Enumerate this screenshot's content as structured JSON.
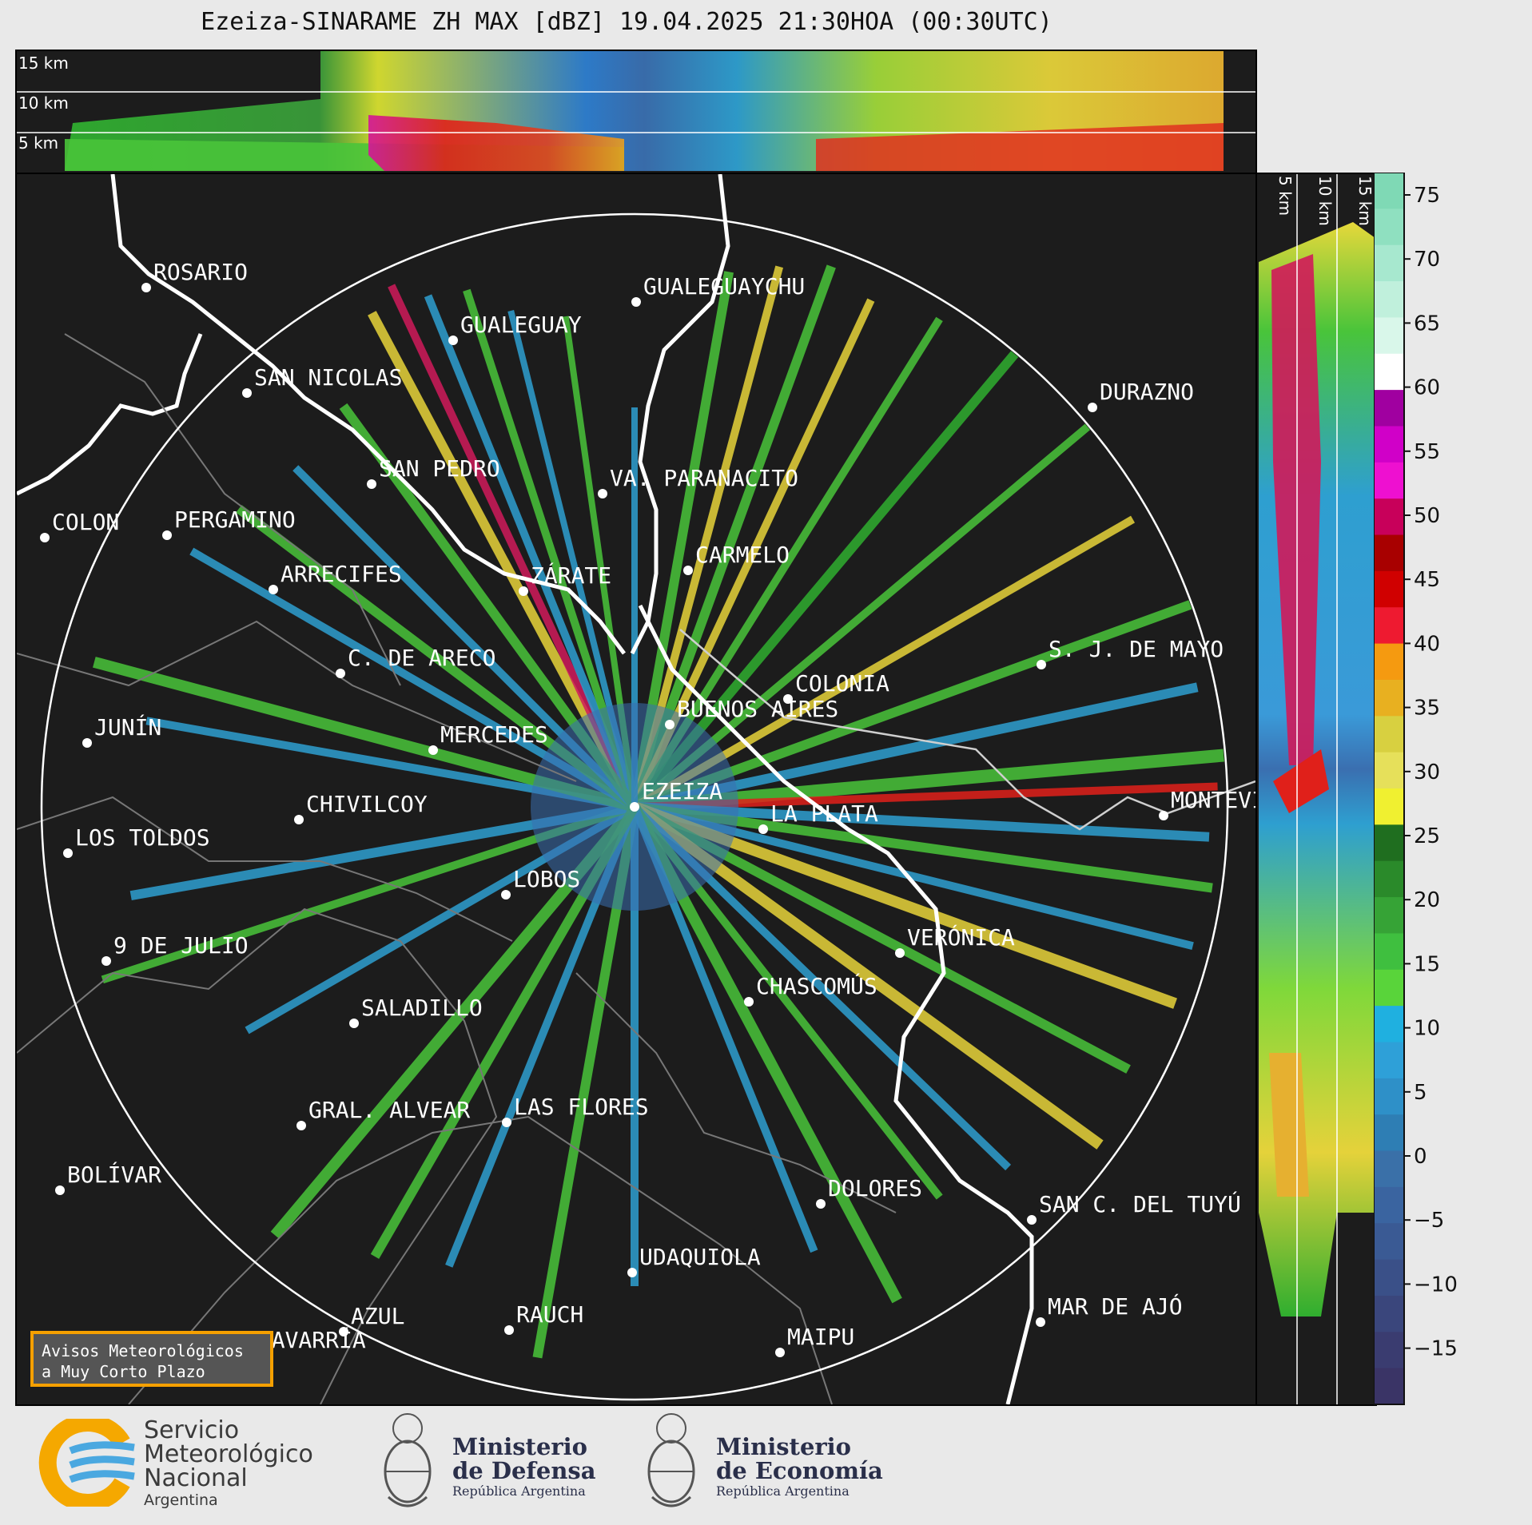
{
  "title": "Ezeiza-SINARAME ZH MAX [dBZ] 19.04.2025 21:30HOA (00:30UTC)",
  "top_panel": {
    "altitude_labels": [
      "15 km",
      "10 km",
      "5 km"
    ]
  },
  "side_panel": {
    "altitude_labels": [
      "5 km",
      "10 km",
      "15 km"
    ]
  },
  "colorbar": {
    "unit": "dBZ",
    "ticks": [
      "75",
      "70",
      "65",
      "60",
      "55",
      "50",
      "45",
      "40",
      "35",
      "30",
      "25",
      "20",
      "15",
      "10",
      "5",
      "0",
      "−5",
      "−10",
      "−15"
    ]
  },
  "cities": [
    {
      "name": "ROSARIO"
    },
    {
      "name": "GUALEGUAYCHU"
    },
    {
      "name": "GUALEGUAY"
    },
    {
      "name": "SAN NICOLAS"
    },
    {
      "name": "DURAZNO"
    },
    {
      "name": "SAN PEDRO"
    },
    {
      "name": "VA. PARANACITO"
    },
    {
      "name": "COLON"
    },
    {
      "name": "PERGAMINO"
    },
    {
      "name": "CARMELO"
    },
    {
      "name": "ARRECIFES"
    },
    {
      "name": "ZÁRATE"
    },
    {
      "name": "S. J. DE MAYO"
    },
    {
      "name": "C. DE ARECO"
    },
    {
      "name": "COLONIA"
    },
    {
      "name": "JUNÍN"
    },
    {
      "name": "BUENOS AIRES"
    },
    {
      "name": "MERCEDES"
    },
    {
      "name": "EZEIZA"
    },
    {
      "name": "MONTEVIDEO"
    },
    {
      "name": "CHIVILCOY"
    },
    {
      "name": "LA PLATA"
    },
    {
      "name": "LOS TOLDOS"
    },
    {
      "name": "LOBOS"
    },
    {
      "name": "VERÓNICA"
    },
    {
      "name": "9 DE JULIO"
    },
    {
      "name": "CHASCOMÚS"
    },
    {
      "name": "SALADILLO"
    },
    {
      "name": "GRAL. ALVEAR"
    },
    {
      "name": "LAS FLORES"
    },
    {
      "name": "BOLÍVAR"
    },
    {
      "name": "DOLORES"
    },
    {
      "name": "SAN C. DEL TUYÚ"
    },
    {
      "name": "UDAQUIOLA"
    },
    {
      "name": "MAR DE AJÓ"
    },
    {
      "name": "AZUL"
    },
    {
      "name": "RAUCH"
    },
    {
      "name": "OLAVARRÍA"
    },
    {
      "name": "MAIPU"
    }
  ],
  "avisos": {
    "line1": "Avisos Meteorológicos",
    "line2": "a Muy Corto Plazo"
  },
  "footer": {
    "smn": {
      "line1": "Servicio",
      "line2": "Meteorológico",
      "line3": "Nacional",
      "line4": "Argentina"
    },
    "defensa": {
      "line1": "Ministerio",
      "line2": "de Defensa",
      "line3": "República Argentina"
    },
    "economia": {
      "line1": "Ministerio",
      "line2": "de Economía",
      "line3": "República Argentina"
    }
  }
}
